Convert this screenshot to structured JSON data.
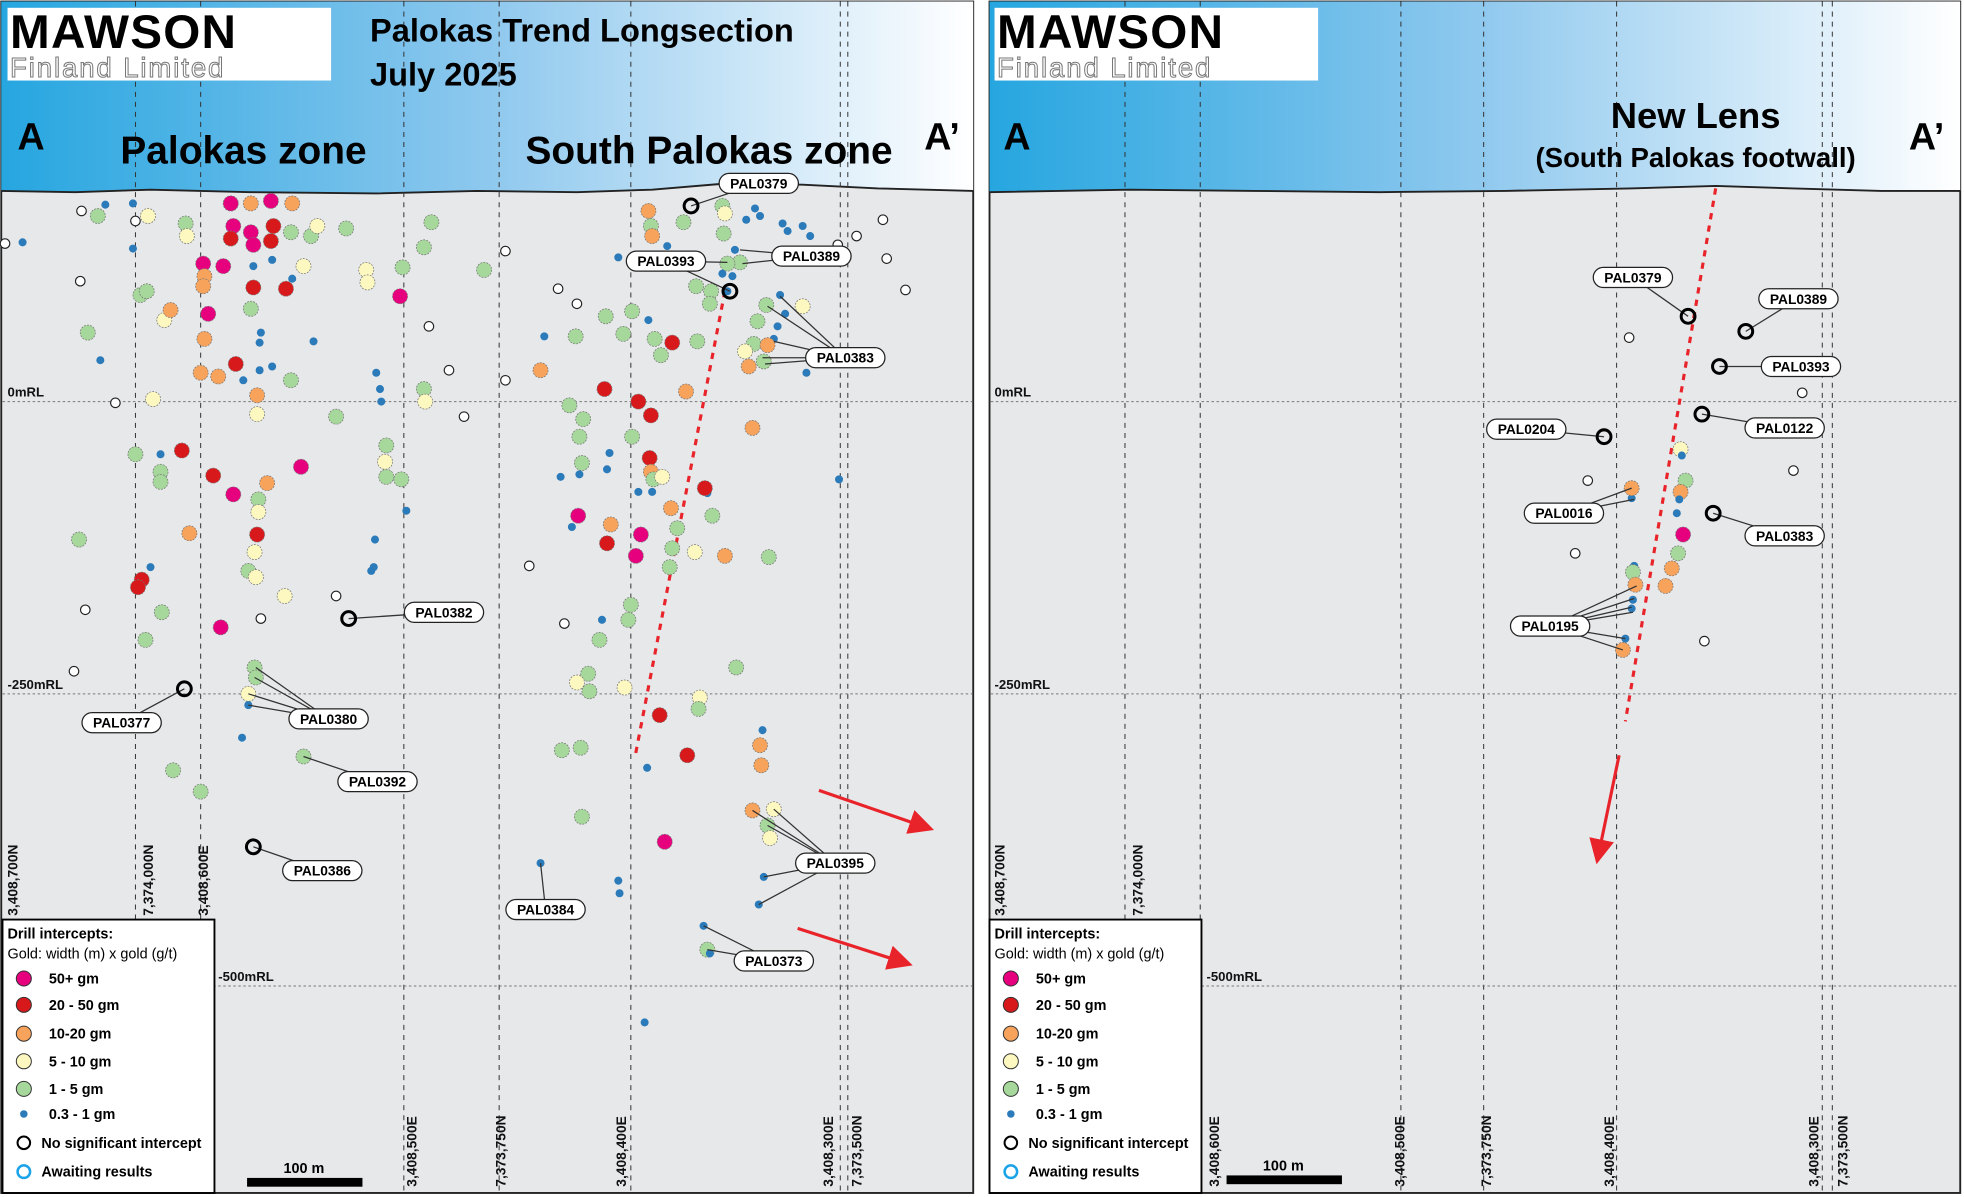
{
  "logo": {
    "name": "MAWSON",
    "sub": "Finland Limited"
  },
  "left_panel": {
    "title_line1": "Palokas Trend Longsection",
    "title_line2": "July 2025",
    "section_start": "A",
    "section_end": "A’",
    "zone1": "Palokas zone",
    "zone2": "South Palokas zone",
    "rl_labels": [
      "0mRL",
      "-250mRL",
      "-500mRL"
    ],
    "coord_labels_upper": [
      "3,408,700N",
      "7,374,000N",
      "3,408,600E"
    ],
    "coord_labels_lower": [
      "3,408,500E",
      "7,373,750N",
      "3,408,400E",
      "3,408,300E",
      "7,373,500N"
    ],
    "holes": [
      "PAL0379",
      "PAL0393",
      "PAL0389",
      "PAL0383",
      "PAL0382",
      "PAL0377",
      "PAL0380",
      "PAL0392",
      "PAL0386",
      "PAL0384",
      "PAL0395",
      "PAL0373"
    ],
    "scale_label": "100 m"
  },
  "right_panel": {
    "section_start": "A",
    "section_end": "A’",
    "zone_title": "New Lens",
    "zone_subtitle": "(South Palokas footwall)",
    "rl_labels": [
      "0mRL",
      "-250mRL",
      "-500mRL"
    ],
    "coord_labels_upper": [
      "3,408,700N",
      "7,374,000N"
    ],
    "coord_labels_lower": [
      "3,408,600E",
      "3,408,500E",
      "7,373,750N",
      "3,408,400E",
      "3,408,300E",
      "7,373,500N"
    ],
    "holes": [
      "PAL0379",
      "PAL0389",
      "PAL0393",
      "PAL0122",
      "PAL0204",
      "PAL0016",
      "PAL0383",
      "PAL0195"
    ],
    "scale_label": "100 m"
  },
  "legend": {
    "title": "Drill intercepts:",
    "subtitle": "Gold: width (m) x gold (g/t)",
    "items": [
      {
        "label": "50+ gm",
        "color": "#e6007e",
        "kind": "m"
      },
      {
        "label": "20 - 50 gm",
        "color": "#d7191c",
        "kind": "r"
      },
      {
        "label": "10-20 gm",
        "color": "#f7a35c",
        "kind": "o"
      },
      {
        "label": "5 - 10 gm",
        "color": "#fdf8c0",
        "kind": "y"
      },
      {
        "label": "1 - 5 gm",
        "color": "#a6d89b",
        "kind": "g"
      },
      {
        "label": "0.3 - 1 gm",
        "color": "#2b7bba",
        "kind": "b"
      },
      {
        "label": "No significant intercept",
        "color": "#000000",
        "kind": "w"
      },
      {
        "label": "Awaiting results",
        "color": "#1aa3e8",
        "kind": "a"
      }
    ]
  },
  "colors": {
    "header_start": "#26a6e0",
    "header_end": "#ffffff",
    "section_bg": "#e7e8ea",
    "fault": "#e8232a"
  }
}
